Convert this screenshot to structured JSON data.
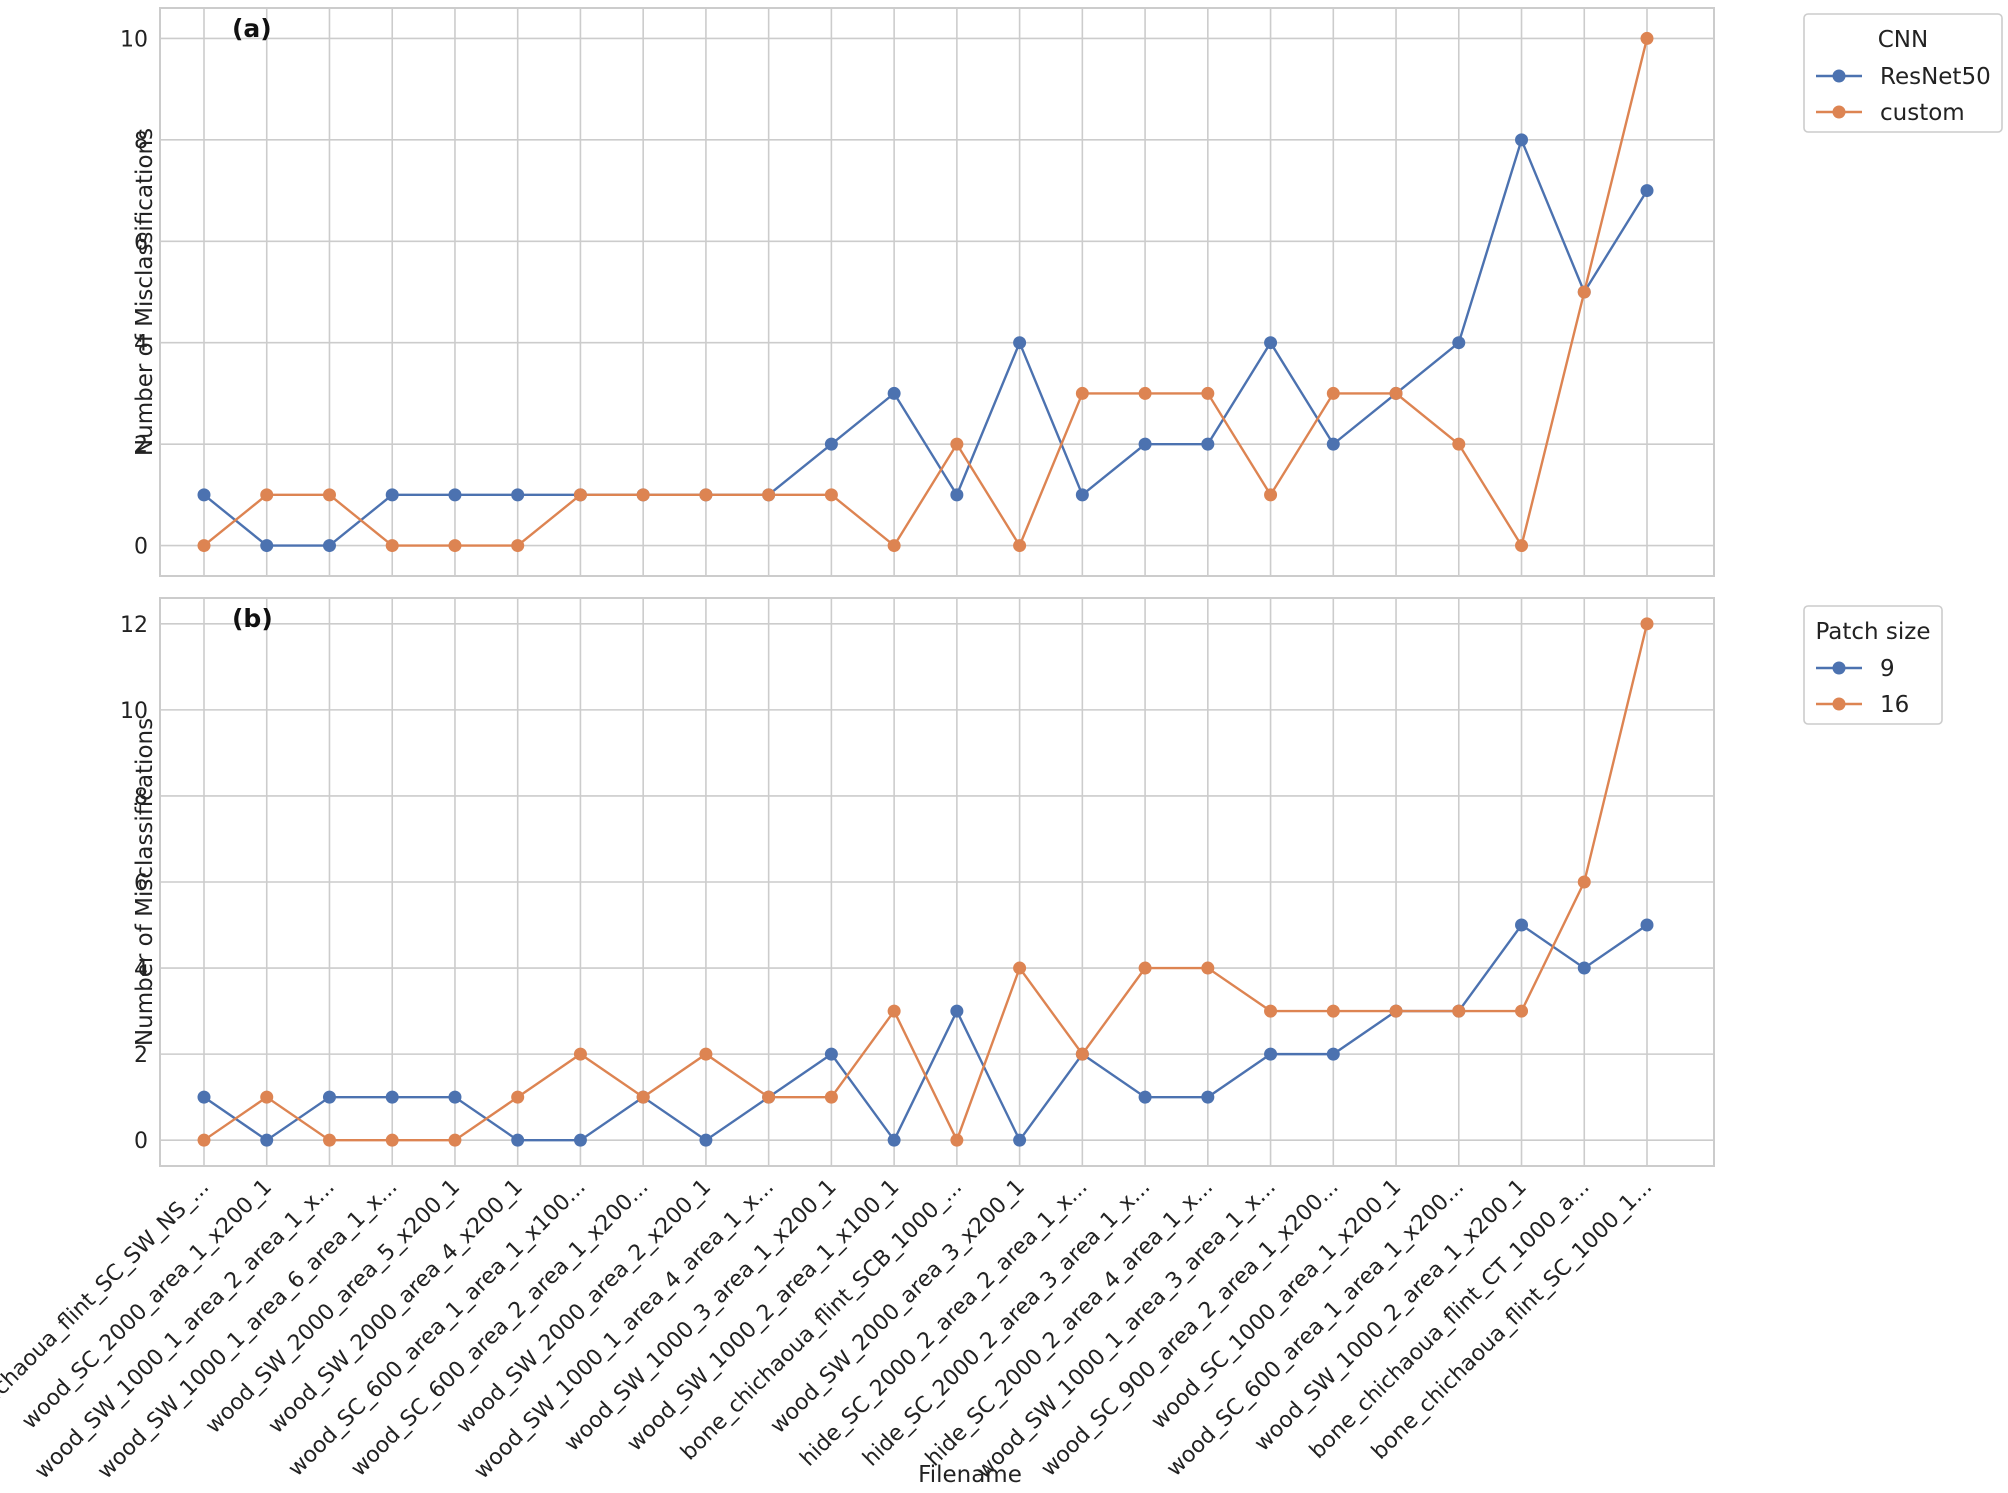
{
  "x_axis_label": "Filename",
  "chart_data": [
    {
      "type": "line",
      "panel_label": "(a)",
      "ylabel": "Number of Misclassifications",
      "ylim": [
        -0.6,
        10.6
      ],
      "yticks": [
        0,
        2,
        4,
        6,
        8,
        10
      ],
      "grid": true,
      "legend": {
        "title": "CNN",
        "placement": "outside-top-right"
      },
      "categories": [
        "bone_chichaoua_flint_SC_SW_NS_...",
        "wood_SC_2000_area_1_x200_1",
        "wood_SW_1000_1_area_2_area_1_x...",
        "wood_SW_1000_1_area_6_area_1_x...",
        "wood_SW_2000_area_5_x200_1",
        "wood_SW_2000_area_4_x200_1",
        "wood_SC_600_area_1_area_1_x100...",
        "wood_SC_600_area_2_area_1_x200...",
        "wood_SW_2000_area_2_x200_1",
        "wood_SW_1000_1_area_4_area_1_x...",
        "wood_SW_1000_3_area_1_x200_1",
        "wood_SW_1000_2_area_1_x100_1",
        "bone_chichaoua_flint_SCB_1000_...",
        "wood_SW_2000_area_3_x200_1",
        "hide_SC_2000_2_area_2_area_1_x...",
        "hide_SC_2000_2_area_3_area_1_x...",
        "hide_SC_2000_2_area_4_area_1_x...",
        "wood_SW_1000_1_area_3_area_1_x...",
        "wood_SC_900_area_2_area_1_x200...",
        "wood_SC_1000_area_1_x200_1",
        "wood_SC_600_area_1_area_1_x200...",
        "wood_SW_1000_2_area_1_x200_1",
        "bone_chichaoua_flint_CT_1000_a...",
        "bone_chichaoua_flint_SC_1000_1..."
      ],
      "series": [
        {
          "name": "ResNet50",
          "color": "#4c72b0",
          "values": [
            1,
            0,
            0,
            1,
            1,
            1,
            1,
            1,
            1,
            1,
            2,
            3,
            1,
            4,
            1,
            2,
            2,
            4,
            2,
            3,
            4,
            8,
            5,
            7
          ]
        },
        {
          "name": "custom",
          "color": "#dd8452",
          "values": [
            0,
            1,
            1,
            0,
            0,
            0,
            1,
            1,
            1,
            1,
            1,
            0,
            2,
            0,
            3,
            3,
            3,
            1,
            3,
            3,
            2,
            0,
            5,
            10
          ]
        }
      ]
    },
    {
      "type": "line",
      "panel_label": "(b)",
      "ylabel": "Number of Misclassifications",
      "ylim": [
        -0.6,
        12.6
      ],
      "yticks": [
        0,
        2,
        4,
        6,
        8,
        10,
        12
      ],
      "grid": true,
      "legend": {
        "title": "Patch size",
        "placement": "outside-top-right"
      },
      "series": [
        {
          "name": "9",
          "color": "#4c72b0",
          "values": [
            1,
            0,
            1,
            1,
            1,
            0,
            0,
            1,
            0,
            1,
            2,
            0,
            3,
            0,
            2,
            1,
            1,
            2,
            2,
            3,
            3,
            5,
            4,
            5
          ]
        },
        {
          "name": "16",
          "color": "#dd8452",
          "values": [
            0,
            1,
            0,
            0,
            0,
            1,
            2,
            1,
            2,
            1,
            1,
            3,
            0,
            4,
            2,
            4,
            4,
            3,
            3,
            3,
            3,
            3,
            6,
            12
          ]
        }
      ]
    }
  ]
}
